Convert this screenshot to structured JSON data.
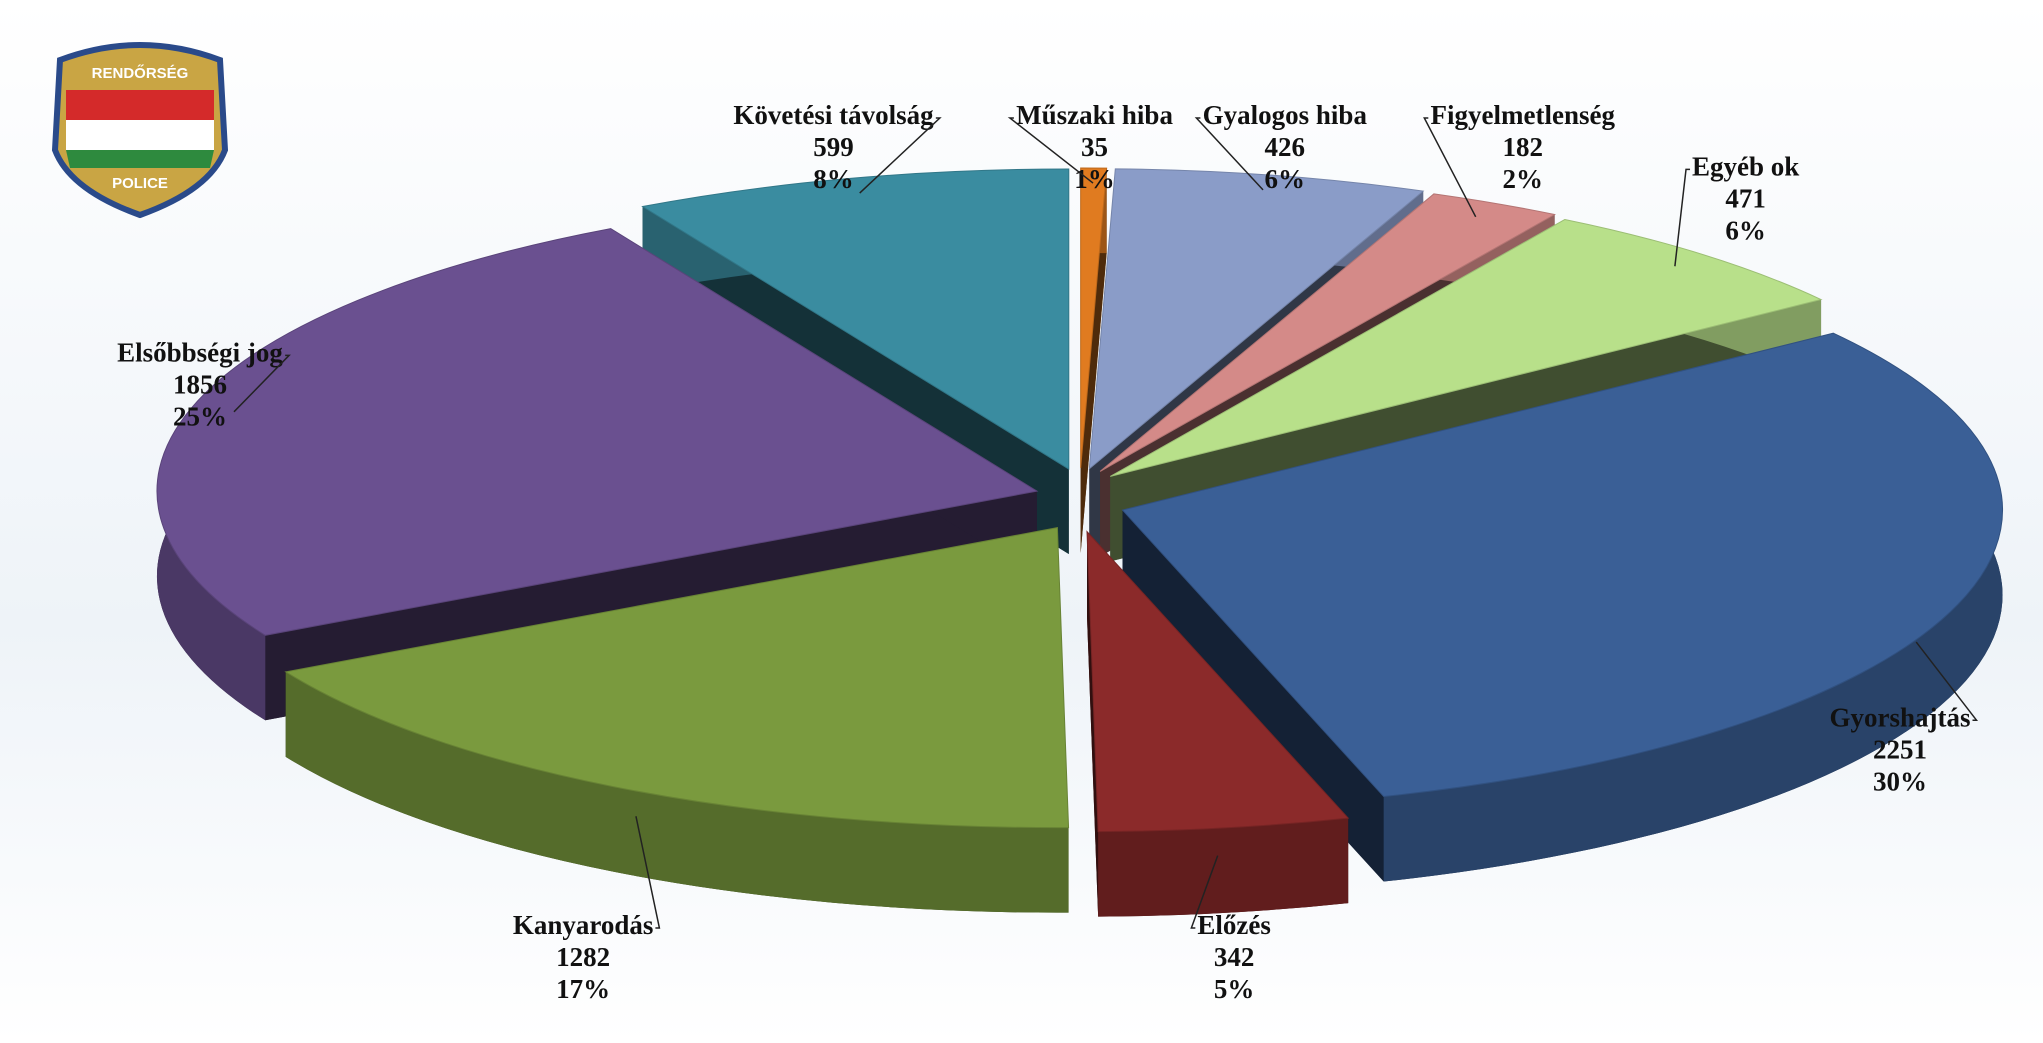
{
  "logo": {
    "top": "RENDŐRSÉG",
    "bottom": "POLICE"
  },
  "chart_data": {
    "type": "pie",
    "categories": [
      "Műszaki hiba",
      "Gyalogos hiba",
      "Figyelmetlenség",
      "Egyéb ok",
      "Gyorshajtás",
      "Előzés",
      "Kanyarodás",
      "Elsőbbségi jog",
      "Követési távolság"
    ],
    "values": [
      35,
      426,
      182,
      471,
      2251,
      342,
      1282,
      1856,
      599
    ],
    "percent_labels": [
      "1%",
      "6%",
      "2%",
      "6%",
      "30%",
      "5%",
      "17%",
      "25%",
      "8%"
    ],
    "colors": [
      "#e07b20",
      "#8a9cc8",
      "#d48a88",
      "#b8e08a",
      "#3a5f96",
      "#8b2a2a",
      "#7a9a3e",
      "#6a5090",
      "#3a8ca0"
    ]
  }
}
